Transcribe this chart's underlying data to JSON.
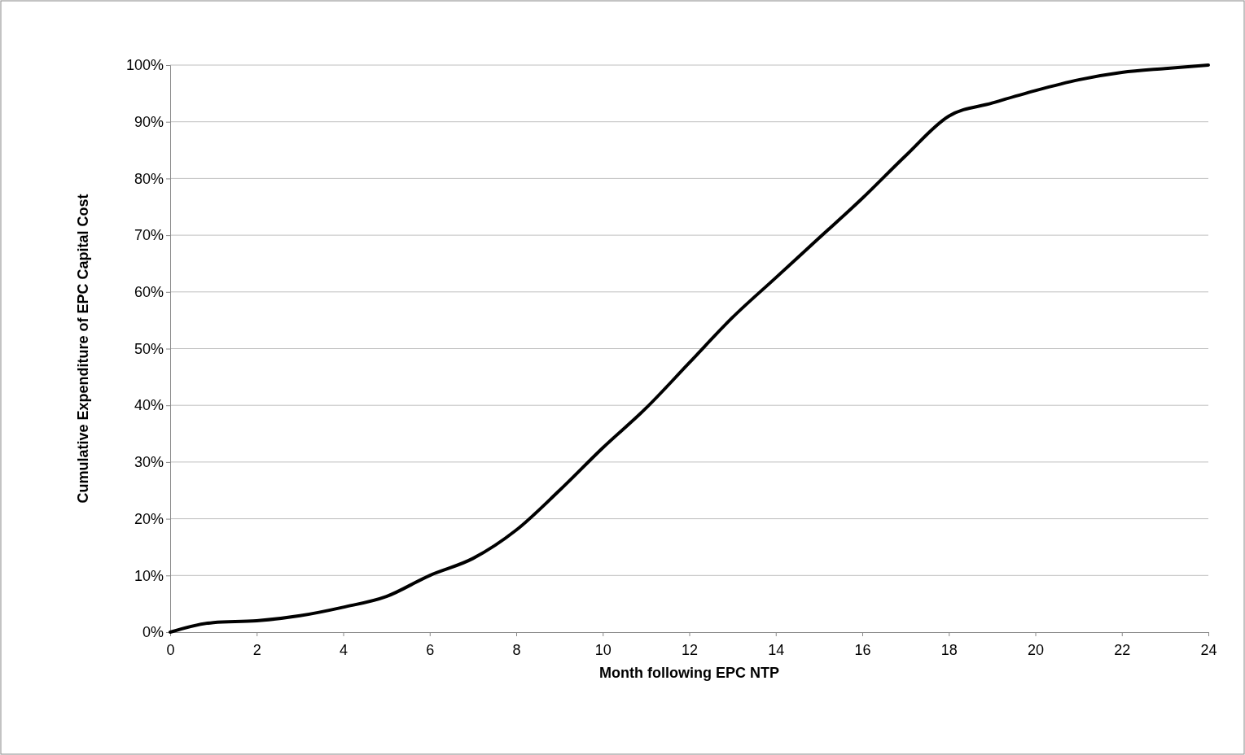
{
  "chart_data": {
    "type": "line",
    "xlabel": "Month following EPC NTP",
    "ylabel": "Cumulative Expenditure of EPC Capital Cost",
    "x": [
      0,
      1,
      2,
      3,
      4,
      5,
      6,
      7,
      8,
      9,
      10,
      11,
      12,
      13,
      14,
      15,
      16,
      17,
      18,
      19,
      20,
      21,
      22,
      23,
      24
    ],
    "series": [
      {
        "color": "#000000",
        "values": [
          0,
          1.7,
          2,
          2.9,
          4.4,
          6.3,
          10,
          13,
          18,
          25,
          32.5,
          39.5,
          47.5,
          55.5,
          62.5,
          69.5,
          76.5,
          84,
          91,
          93.3,
          95.5,
          97.4,
          98.7,
          99.4,
          100
        ]
      }
    ],
    "xlim": [
      0,
      24
    ],
    "xticks": [
      0,
      2,
      4,
      6,
      8,
      10,
      12,
      14,
      16,
      18,
      20,
      22,
      24
    ],
    "ylim": [
      0,
      100
    ],
    "yticks": [
      {
        "value": 0,
        "label": "0%"
      },
      {
        "value": 10,
        "label": "10%"
      },
      {
        "value": 20,
        "label": "20%"
      },
      {
        "value": 30,
        "label": "30%"
      },
      {
        "value": 40,
        "label": "40%"
      },
      {
        "value": 50,
        "label": "50%"
      },
      {
        "value": 60,
        "label": "60%"
      },
      {
        "value": 70,
        "label": "70%"
      },
      {
        "value": 80,
        "label": "80%"
      },
      {
        "value": 90,
        "label": "90%"
      },
      {
        "value": 100,
        "label": "100%"
      }
    ],
    "grid": "y",
    "marker": "none",
    "line_style": "solid"
  }
}
